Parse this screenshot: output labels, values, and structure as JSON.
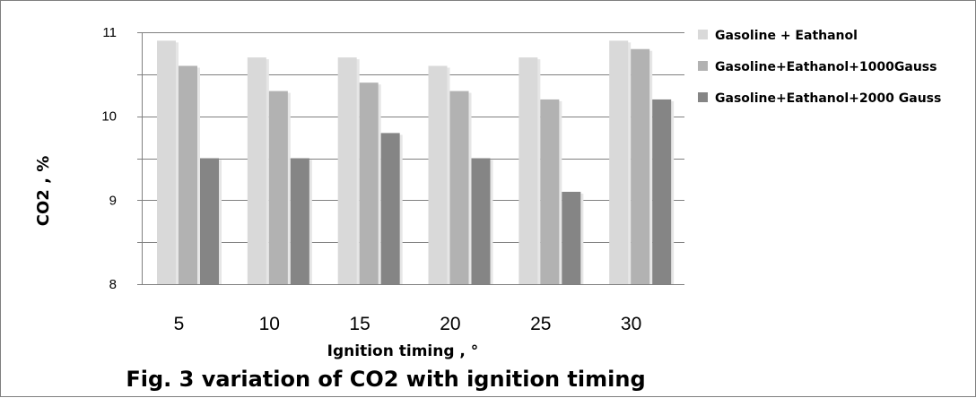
{
  "chart_data": {
    "type": "bar",
    "categories": [
      "5",
      "10",
      "15",
      "20",
      "25",
      "30"
    ],
    "series": [
      {
        "name": "Gasoline + Eathanol",
        "color": "#d9d9d9",
        "values": [
          10.9,
          10.7,
          10.7,
          10.6,
          10.7,
          10.9
        ]
      },
      {
        "name": "Gasoline+Eathanol+1000Gauss",
        "color": "#b2b2b2",
        "values": [
          10.6,
          10.3,
          10.4,
          10.3,
          10.2,
          10.8
        ]
      },
      {
        "name": "Gasoline+Eathanol+2000 Gauss",
        "color": "#858585",
        "values": [
          9.5,
          9.5,
          9.8,
          9.5,
          9.1,
          10.2
        ]
      }
    ],
    "ylim": [
      8,
      11
    ],
    "yticks": [
      "8",
      "9",
      "10",
      "11"
    ],
    "ylabel": "CO2 , %",
    "xlabel": "Ignition timing , °",
    "caption": "Fig.  3 variation of CO2 with ignition timing",
    "grid": true,
    "legend_position": "right"
  }
}
